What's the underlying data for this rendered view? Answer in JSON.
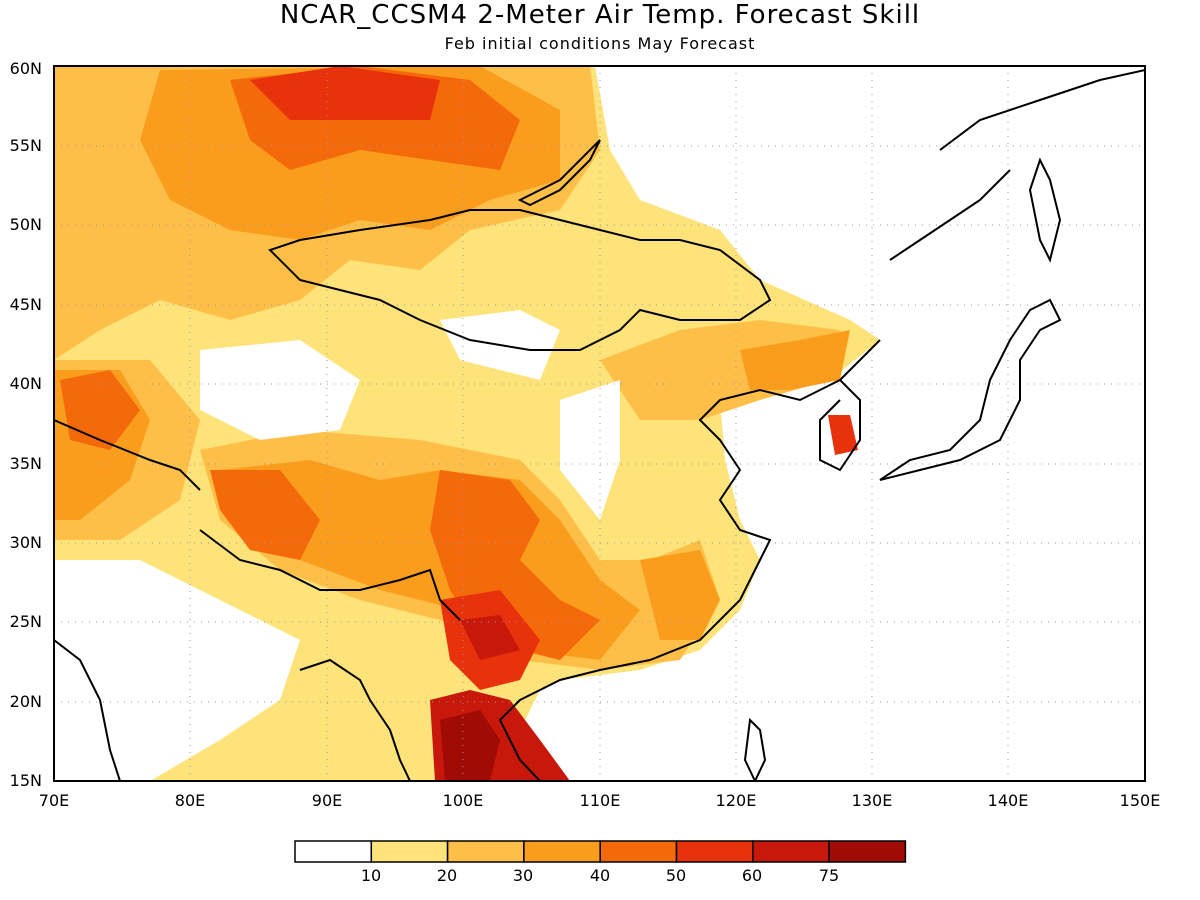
{
  "title": "NCAR_CCSM4 2-Meter Air Temp. Forecast Skill",
  "subtitle": "Feb initial conditions  May Forecast",
  "map": {
    "lon_range": [
      70,
      150
    ],
    "lat_range": [
      15,
      60
    ],
    "lon_ticks": [
      "70E",
      "80E",
      "90E",
      "100E",
      "110E",
      "120E",
      "130E",
      "140E",
      "150E"
    ],
    "lat_ticks": [
      "15N",
      "20N",
      "25N",
      "30N",
      "35N",
      "40N",
      "45N",
      "50N",
      "55N",
      "60N"
    ],
    "grid": "dotted"
  },
  "colorbar": {
    "colors": [
      "#ffffff",
      "#fee27a",
      "#fdbf47",
      "#fb9d1c",
      "#f46a0a",
      "#e8320c",
      "#c8170b",
      "#a00b06"
    ],
    "labels": [
      "10",
      "20",
      "30",
      "40",
      "50",
      "60",
      "75"
    ]
  }
}
